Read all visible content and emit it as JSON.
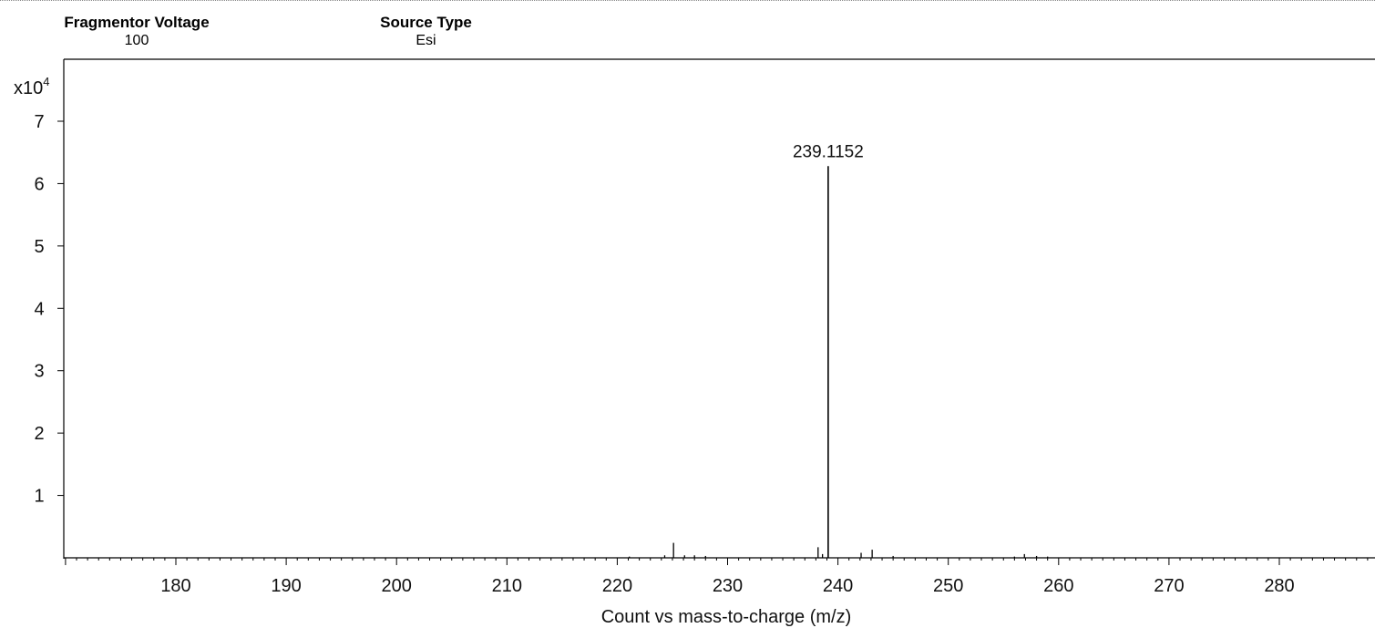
{
  "header": {
    "fragmentor_voltage": {
      "label": "Fragmentor Voltage",
      "value": "100"
    },
    "source_type": {
      "label": "Source Type",
      "value": "Esi"
    }
  },
  "chart_data": {
    "type": "bar",
    "xlabel": "Count vs mass-to-charge (m/z)",
    "ylabel_multiplier": "x10",
    "ylabel_exponent": "4",
    "xlim": [
      170,
      289
    ],
    "ylim": [
      0,
      7.8
    ],
    "x_ticks": [
      180,
      190,
      200,
      210,
      220,
      230,
      240,
      250,
      260,
      270,
      280
    ],
    "y_ticks": [
      1,
      2,
      3,
      4,
      5,
      6,
      7
    ],
    "grid": false,
    "color": "#000000",
    "peaks": [
      {
        "mz": 221.1,
        "intensity": 0.02
      },
      {
        "mz": 224.3,
        "intensity": 0.04
      },
      {
        "mz": 225.1,
        "intensity": 0.24
      },
      {
        "mz": 226.1,
        "intensity": 0.04
      },
      {
        "mz": 227.0,
        "intensity": 0.04
      },
      {
        "mz": 228.0,
        "intensity": 0.03
      },
      {
        "mz": 238.2,
        "intensity": 0.17
      },
      {
        "mz": 238.6,
        "intensity": 0.06
      },
      {
        "mz": 239.1152,
        "intensity": 6.28,
        "label": "239.1152"
      },
      {
        "mz": 242.1,
        "intensity": 0.08
      },
      {
        "mz": 243.1,
        "intensity": 0.13
      },
      {
        "mz": 245.0,
        "intensity": 0.03
      },
      {
        "mz": 256.0,
        "intensity": 0.02
      },
      {
        "mz": 256.9,
        "intensity": 0.06
      },
      {
        "mz": 258.0,
        "intensity": 0.03
      },
      {
        "mz": 259.0,
        "intensity": 0.02
      }
    ]
  }
}
